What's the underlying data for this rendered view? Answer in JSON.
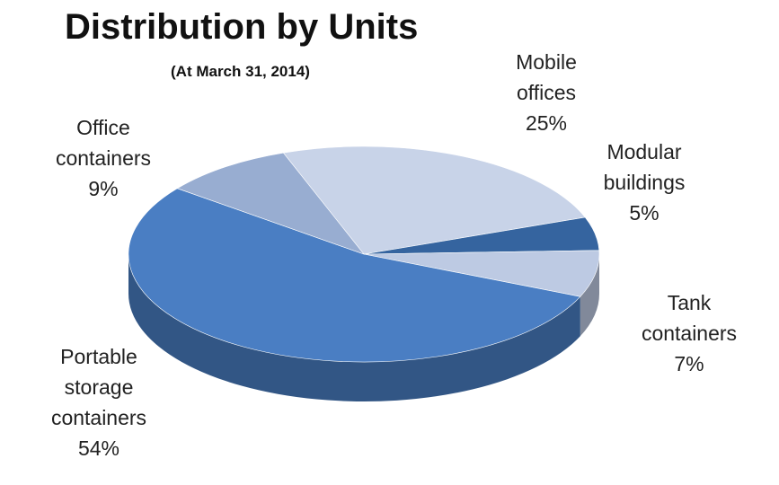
{
  "chart_data": {
    "type": "pie",
    "title": "Distribution by Units",
    "subtitle": "(At March 31, 2014)",
    "slices": [
      {
        "label_lines": [
          "Mobile",
          "offices"
        ],
        "percent_label": "25%",
        "value": 25,
        "color": "#c8d3e8"
      },
      {
        "label_lines": [
          "Modular",
          "buildings"
        ],
        "percent_label": "5%",
        "value": 5,
        "color": "#35649f"
      },
      {
        "label_lines": [
          "Tank",
          "containers"
        ],
        "percent_label": "7%",
        "value": 7,
        "color": "#bdcae3"
      },
      {
        "label_lines": [
          "Portable",
          "storage",
          "containers"
        ],
        "percent_label": "54%",
        "value": 54,
        "color": "#4a7ec3"
      },
      {
        "label_lines": [
          "Office",
          "containers"
        ],
        "percent_label": "9%",
        "value": 9,
        "color": "#98add1"
      }
    ]
  }
}
